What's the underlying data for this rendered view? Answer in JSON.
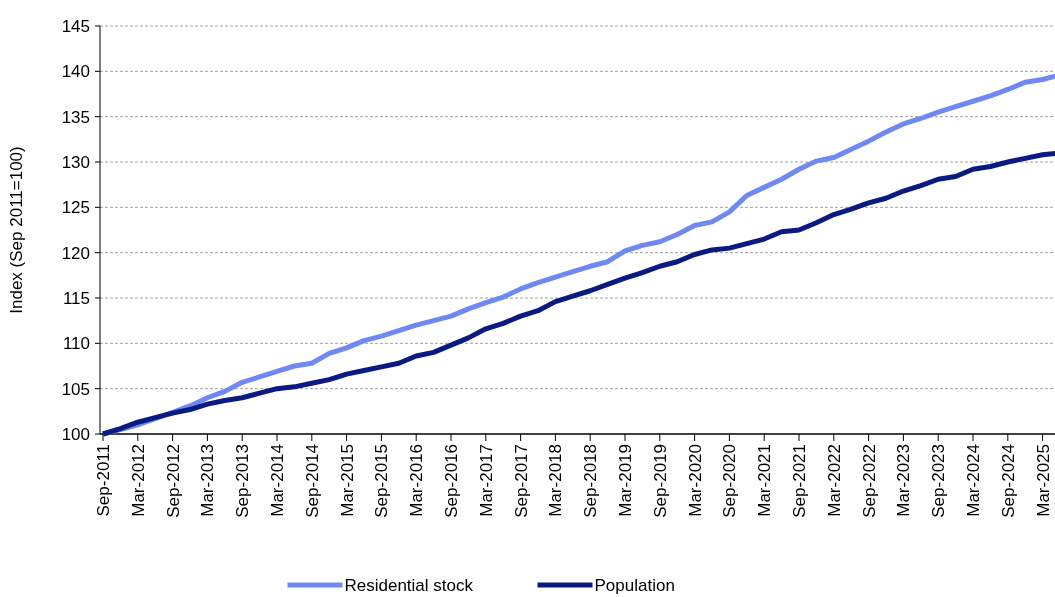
{
  "chart_data": {
    "type": "line",
    "ylabel": "Index (Sep 2011=100)",
    "categories": [
      "Sep-2011",
      null,
      "Mar-2012",
      null,
      "Sep-2012",
      null,
      "Mar-2013",
      null,
      "Sep-2013",
      null,
      "Mar-2014",
      null,
      "Sep-2014",
      null,
      "Mar-2015",
      null,
      "Sep-2015",
      null,
      "Mar-2016",
      null,
      "Sep-2016",
      null,
      "Mar-2017",
      null,
      "Sep-2017",
      null,
      "Mar-2018",
      null,
      "Sep-2018",
      null,
      "Mar-2019",
      null,
      "Sep-2019",
      null,
      "Mar-2020",
      null,
      "Sep-2020",
      null,
      "Mar-2021",
      null,
      "Sep-2021",
      null,
      "Mar-2022",
      null,
      "Sep-2022",
      null,
      "Mar-2023",
      null,
      "Sep-2023",
      null,
      "Mar-2024",
      null,
      "Sep-2024",
      null,
      "Mar-2025",
      null
    ],
    "series": [
      {
        "name": "Residential stock",
        "color": "#7088f2",
        "values": [
          100,
          100.5,
          101.0,
          101.7,
          102.4,
          103.1,
          104.0,
          104.7,
          105.7,
          106.3,
          106.9,
          107.5,
          107.8,
          108.9,
          109.5,
          110.3,
          110.8,
          111.4,
          112.0,
          112.5,
          113.0,
          113.8,
          114.5,
          115.1,
          116.0,
          116.7,
          117.3,
          117.9,
          118.5,
          119.0,
          120.2,
          120.8,
          121.2,
          122.0,
          123.0,
          123.4,
          124.5,
          126.3,
          127.2,
          128.1,
          129.2,
          130.1,
          130.5,
          131.4,
          132.3,
          133.3,
          134.2,
          134.8,
          135.5,
          136.1,
          136.7,
          137.3,
          138.0,
          138.8,
          139.1,
          139.6
        ]
      },
      {
        "name": "Population",
        "color": "#0a1a82",
        "values": [
          100,
          100.6,
          101.3,
          101.8,
          102.3,
          102.7,
          103.3,
          103.7,
          104.0,
          104.5,
          105.0,
          105.2,
          105.6,
          106.0,
          106.6,
          107.0,
          107.4,
          107.8,
          108.6,
          109.0,
          109.8,
          110.6,
          111.6,
          112.2,
          113.0,
          113.6,
          114.6,
          115.2,
          115.8,
          116.5,
          117.2,
          117.8,
          118.5,
          119.0,
          119.8,
          120.3,
          120.5,
          121.0,
          121.5,
          122.3,
          122.5,
          123.3,
          124.2,
          124.8,
          125.5,
          126.0,
          126.8,
          127.4,
          128.1,
          128.4,
          129.2,
          129.5,
          130.0,
          130.4,
          130.8,
          131.0
        ]
      }
    ],
    "ylim": [
      100,
      145
    ],
    "yticks": [
      100,
      105,
      110,
      115,
      120,
      125,
      130,
      135,
      140,
      145
    ],
    "grid": "y",
    "legend": "bottom",
    "line_style": "solid",
    "marker": "none"
  }
}
